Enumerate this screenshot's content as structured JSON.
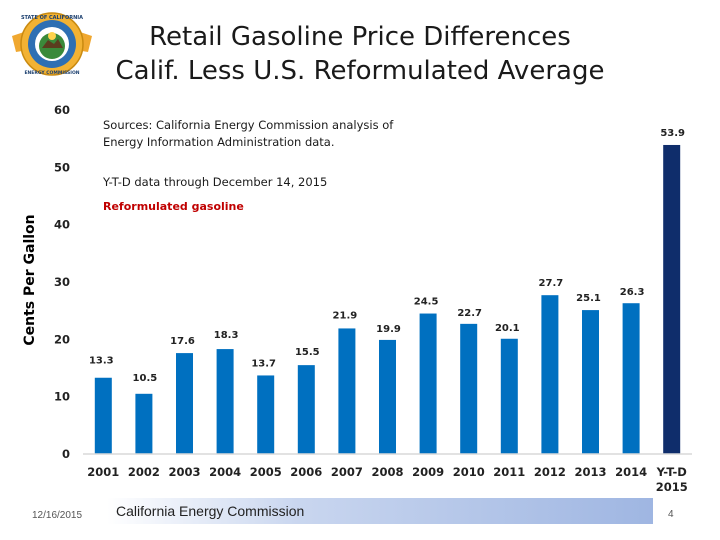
{
  "slide": {
    "title_line1": "Retail Gasoline Price Differences",
    "title_line2": "Calif. Less U.S. Reformulated Average",
    "footer_date": "12/16/2015",
    "footer_org": "California Energy Commission",
    "page_number": "4"
  },
  "logo": {
    "top_text": "STATE OF CALIFORNIA",
    "bottom_text": "ENERGY COMMISSION"
  },
  "colors": {
    "bar": "#0070c0",
    "highlight_bar": "#0f2d6b",
    "axis": "#d9d9d9",
    "red_note": "#c00000"
  },
  "annotations": {
    "source_line1": "Sources: California Energy Commission analysis of",
    "source_line2": "Energy Information Administration data.",
    "ytd_note": "Y-T-D data through December 14, 2015",
    "series_note": "Reformulated gasoline"
  },
  "chart_data": {
    "type": "bar",
    "title": "Retail Gasoline Price Differences — Calif. Less U.S. Reformulated Average",
    "ylabel": "Cents Per Gallon",
    "xlabel": "",
    "ylim": [
      0,
      60
    ],
    "yticks": [
      0,
      10,
      20,
      30,
      40,
      50,
      60
    ],
    "categories": [
      "2001",
      "2002",
      "2003",
      "2004",
      "2005",
      "2006",
      "2007",
      "2008",
      "2009",
      "2010",
      "2011",
      "2012",
      "2013",
      "2014",
      "Y-T-D\n2015"
    ],
    "values": [
      13.3,
      10.5,
      17.6,
      18.3,
      13.7,
      15.5,
      21.9,
      19.9,
      24.5,
      22.7,
      20.1,
      27.7,
      25.1,
      26.3,
      53.9
    ],
    "value_labels": [
      "13.3",
      "10.5",
      "17.6",
      "18.3",
      "13.7",
      "15.5",
      "21.9",
      "19.9",
      "24.5",
      "22.7",
      "20.1",
      "27.7",
      "25.1",
      "26.3",
      "53.9"
    ],
    "highlight_index": 14,
    "grid": false,
    "legend": "none"
  }
}
